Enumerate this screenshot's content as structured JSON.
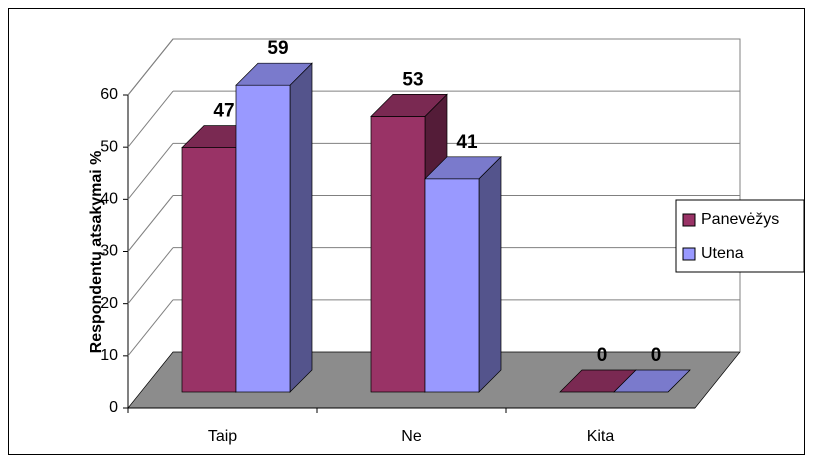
{
  "chart_data": {
    "type": "bar3d",
    "ylabel": "Respondentų atsakymai %",
    "categories": [
      "Taip",
      "Ne",
      "Kita"
    ],
    "series": [
      {
        "name": "Panevėžys",
        "color": "#993366",
        "values": [
          47,
          53,
          0
        ]
      },
      {
        "name": "Utena",
        "color": "#9999ff",
        "values": [
          59,
          41,
          0
        ]
      }
    ],
    "ylim": [
      0,
      60
    ],
    "yticks": [
      0,
      10,
      20,
      30,
      40,
      50,
      60
    ],
    "grid": true,
    "legend": "right"
  }
}
